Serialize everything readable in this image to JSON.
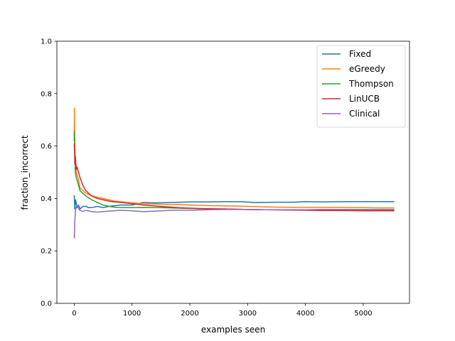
{
  "chart_data": {
    "type": "line",
    "title": "",
    "xlabel": "examples seen",
    "ylabel": "fraction_incorrect",
    "xlim": [
      -300,
      5800
    ],
    "ylim": [
      0.0,
      1.0
    ],
    "x_ticks": [
      0,
      1000,
      2000,
      3000,
      4000,
      5000
    ],
    "x_tick_labels": [
      "0",
      "1000",
      "2000",
      "3000",
      "4000",
      "5000"
    ],
    "y_ticks": [
      0.0,
      0.2,
      0.4,
      0.6,
      0.8,
      1.0
    ],
    "y_tick_labels": [
      "0.0",
      "0.2",
      "0.4",
      "0.6",
      "0.8",
      "1.0"
    ],
    "grid": false,
    "legend_position": "top-right",
    "series": [
      {
        "name": "Fixed",
        "color": "#1f77b4",
        "x": [
          1,
          10,
          25,
          50,
          75,
          100,
          150,
          200,
          250,
          300,
          400,
          500,
          600,
          800,
          1000,
          1200,
          1400,
          1700,
          2000,
          2300,
          2600,
          2900,
          3100,
          3300,
          3500,
          3800,
          4000,
          4300,
          4600,
          4900,
          5200,
          5528
        ],
        "y": [
          0.41,
          0.36,
          0.395,
          0.365,
          0.375,
          0.36,
          0.37,
          0.37,
          0.365,
          0.365,
          0.37,
          0.365,
          0.37,
          0.375,
          0.375,
          0.385,
          0.383,
          0.385,
          0.387,
          0.387,
          0.388,
          0.388,
          0.385,
          0.385,
          0.386,
          0.386,
          0.388,
          0.387,
          0.388,
          0.388,
          0.388,
          0.388
        ]
      },
      {
        "name": "eGreedy",
        "color": "#ff7f0e",
        "x": [
          1,
          3,
          10,
          20,
          35,
          50,
          75,
          100,
          150,
          200,
          300,
          400,
          500,
          600,
          700,
          800,
          1000,
          1200,
          1500,
          1800,
          2000,
          2300,
          2600,
          3000,
          3300,
          3600,
          4000,
          4300,
          4600,
          5000,
          5300,
          5528
        ],
        "y": [
          0.64,
          0.745,
          0.62,
          0.52,
          0.5,
          0.49,
          0.47,
          0.44,
          0.43,
          0.42,
          0.41,
          0.405,
          0.4,
          0.395,
          0.39,
          0.388,
          0.383,
          0.38,
          0.378,
          0.377,
          0.375,
          0.373,
          0.372,
          0.37,
          0.368,
          0.367,
          0.366,
          0.366,
          0.366,
          0.365,
          0.364,
          0.364
        ]
      },
      {
        "name": "Thompson",
        "color": "#2ca02c",
        "x": [
          1,
          3,
          10,
          20,
          35,
          50,
          75,
          100,
          150,
          200,
          300,
          400,
          500,
          600,
          700,
          800,
          1000,
          1200,
          1500,
          1800,
          2000,
          2300,
          2600,
          3000,
          3300,
          3600,
          4000,
          4300,
          4600,
          5000,
          5300,
          5528
        ],
        "y": [
          0.62,
          0.655,
          0.58,
          0.5,
          0.48,
          0.47,
          0.45,
          0.43,
          0.42,
          0.41,
          0.395,
          0.385,
          0.375,
          0.37,
          0.367,
          0.365,
          0.365,
          0.366,
          0.365,
          0.363,
          0.362,
          0.36,
          0.36,
          0.358,
          0.357,
          0.357,
          0.356,
          0.356,
          0.356,
          0.355,
          0.355,
          0.355
        ]
      },
      {
        "name": "LinUCB",
        "color": "#d62728",
        "x": [
          1,
          3,
          10,
          20,
          35,
          50,
          75,
          100,
          150,
          200,
          300,
          400,
          500,
          600,
          700,
          800,
          1000,
          1200,
          1500,
          1800,
          2000,
          2300,
          2600,
          3000,
          3300,
          3600,
          4000,
          4300,
          4600,
          5000,
          5300,
          5528
        ],
        "y": [
          0.6,
          0.61,
          0.53,
          0.56,
          0.51,
          0.52,
          0.5,
          0.48,
          0.45,
          0.43,
          0.41,
          0.4,
          0.395,
          0.39,
          0.387,
          0.385,
          0.38,
          0.375,
          0.37,
          0.365,
          0.363,
          0.361,
          0.36,
          0.358,
          0.357,
          0.356,
          0.355,
          0.354,
          0.354,
          0.353,
          0.353,
          0.353
        ]
      },
      {
        "name": "Clinical",
        "color": "#9467bd",
        "x": [
          1,
          3,
          8,
          15,
          25,
          40,
          60,
          80,
          100,
          150,
          200,
          300,
          400,
          500,
          600,
          800,
          1000,
          1200,
          1400,
          1700,
          2000,
          2300,
          2600,
          3000,
          3300,
          3600,
          4000,
          4300,
          4600,
          5000,
          5300,
          5528
        ],
        "y": [
          0.26,
          0.25,
          0.3,
          0.33,
          0.36,
          0.37,
          0.37,
          0.36,
          0.355,
          0.35,
          0.355,
          0.35,
          0.348,
          0.35,
          0.352,
          0.355,
          0.353,
          0.35,
          0.352,
          0.355,
          0.355,
          0.357,
          0.358,
          0.358,
          0.357,
          0.357,
          0.357,
          0.358,
          0.358,
          0.358,
          0.358,
          0.358
        ]
      }
    ]
  }
}
